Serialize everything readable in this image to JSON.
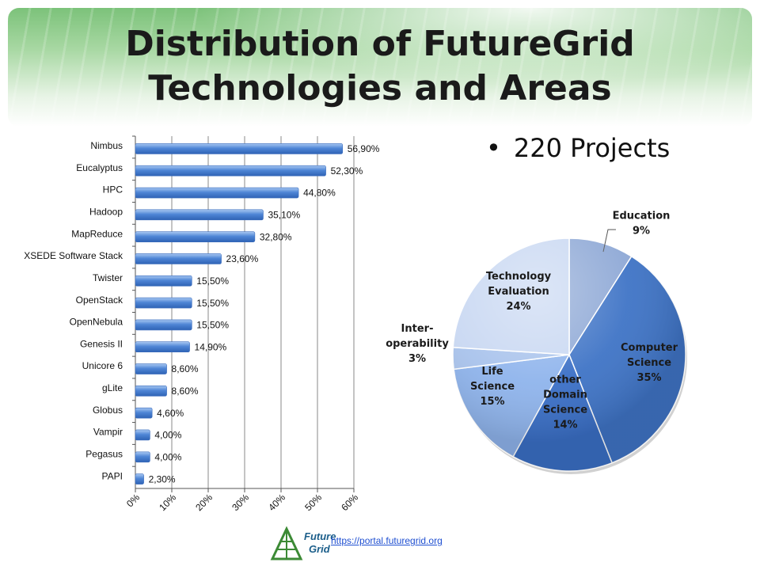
{
  "slide": {
    "title_line1": "Distribution of FutureGrid",
    "title_line2": "Technologies and Areas",
    "bullet": "220 Projects",
    "url": "https://portal.futuregrid.org",
    "logo_text_1": "Future",
    "logo_text_2": "Grid"
  },
  "chart_data": [
    {
      "type": "bar",
      "orientation": "horizontal",
      "categories": [
        "Nimbus",
        "Eucalyptus",
        "HPC",
        "Hadoop",
        "MapReduce",
        "XSEDE Software Stack",
        "Twister",
        "OpenStack",
        "OpenNebula",
        "Genesis II",
        "Unicore 6",
        "gLite",
        "Globus",
        "Vampir",
        "Pegasus",
        "PAPI"
      ],
      "values": [
        56.9,
        52.3,
        44.8,
        35.1,
        32.8,
        23.6,
        15.5,
        15.5,
        15.5,
        14.9,
        8.6,
        8.6,
        4.6,
        4.0,
        4.0,
        2.3
      ],
      "value_labels": [
        "56,90%",
        "52,30%",
        "44,80%",
        "35,10%",
        "32,80%",
        "23,60%",
        "15,50%",
        "15,50%",
        "15,50%",
        "14,90%",
        "8,60%",
        "8,60%",
        "4,60%",
        "4,00%",
        "4,00%",
        "2,30%"
      ],
      "xlim": [
        0,
        60
      ],
      "xticks": [
        "0%",
        "10%",
        "20%",
        "30%",
        "40%",
        "50%",
        "60%"
      ],
      "grid": true,
      "bar_color": "#4f86d6"
    },
    {
      "type": "pie",
      "slices": [
        {
          "lines": [
            "Education",
            "9%"
          ],
          "value": 9,
          "color": "#8fa9d6"
        },
        {
          "lines": [
            "Computer",
            "Science",
            "35%"
          ],
          "value": 35,
          "color": "#3f74c6"
        },
        {
          "lines": [
            "other",
            "Domain",
            "Science",
            "14%"
          ],
          "value": 14,
          "color": "#3a6fc6"
        },
        {
          "lines": [
            "Life",
            "Science",
            "15%"
          ],
          "value": 15,
          "color": "#8fb4ec"
        },
        {
          "lines": [
            "Inter-",
            "operability",
            "3%"
          ],
          "value": 3,
          "color": "#a9c3ec"
        },
        {
          "lines": [
            "Technology",
            "Evaluation",
            "24%"
          ],
          "value": 24,
          "color": "#c9d8f2"
        }
      ]
    }
  ]
}
